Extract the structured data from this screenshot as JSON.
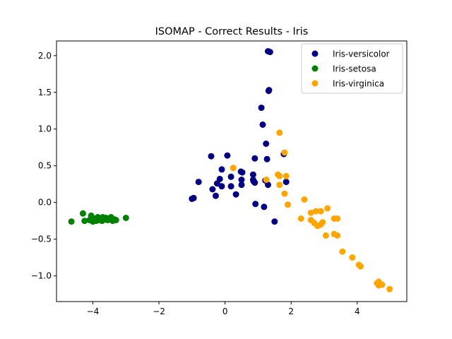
{
  "chart_data": {
    "type": "scatter",
    "title": "ISOMAP - Correct Results - Iris",
    "xlabel": "",
    "ylabel": "",
    "xlim": [
      -5.1,
      5.5
    ],
    "ylim": [
      -1.35,
      2.2
    ],
    "xticks": [
      -4,
      -2,
      0,
      2,
      4
    ],
    "yticks": [
      -1.0,
      -0.5,
      0.0,
      0.5,
      1.0,
      1.5,
      2.0
    ],
    "xtick_labels": [
      "−4",
      "−2",
      "0",
      "2",
      "4"
    ],
    "ytick_labels": [
      "−1.0",
      "−0.5",
      "0.0",
      "0.5",
      "1.0",
      "1.5",
      "2.0"
    ],
    "grid": false,
    "legend_position": "top-right",
    "series": [
      {
        "name": "Iris-versicolor",
        "color": "#000080",
        "points": [
          [
            1.3,
            2.06
          ],
          [
            1.36,
            2.05
          ],
          [
            1.33,
            1.53
          ],
          [
            1.32,
            1.52
          ],
          [
            1.1,
            1.29
          ],
          [
            1.14,
            1.06
          ],
          [
            1.24,
            0.8
          ],
          [
            1.78,
            0.66
          ],
          [
            -0.42,
            0.63
          ],
          [
            0.07,
            0.64
          ],
          [
            0.9,
            0.6
          ],
          [
            1.27,
            0.59
          ],
          [
            -0.1,
            0.45
          ],
          [
            0.48,
            0.42
          ],
          [
            0.52,
            0.41
          ],
          [
            0.85,
            0.38
          ],
          [
            0.18,
            0.35
          ],
          [
            -0.16,
            0.32
          ],
          [
            0.5,
            0.31
          ],
          [
            0.85,
            0.31
          ],
          [
            0.86,
            0.29
          ],
          [
            1.22,
            0.3
          ],
          [
            1.85,
            0.28
          ],
          [
            -0.8,
            0.28
          ],
          [
            -0.24,
            0.26
          ],
          [
            0.9,
            0.27
          ],
          [
            0.5,
            0.24
          ],
          [
            1.3,
            0.24
          ],
          [
            -0.1,
            0.22
          ],
          [
            0.18,
            0.22
          ],
          [
            -0.38,
            0.18
          ],
          [
            -0.28,
            0.09
          ],
          [
            0.33,
            0.11
          ],
          [
            -1.0,
            0.05
          ],
          [
            -0.95,
            0.06
          ],
          [
            0.92,
            -0.02
          ],
          [
            1.18,
            -0.06
          ],
          [
            1.5,
            -0.26
          ]
        ]
      },
      {
        "name": "Iris-setosa",
        "color": "#008000",
        "points": [
          [
            -4.65,
            -0.26
          ],
          [
            -4.3,
            -0.15
          ],
          [
            -4.25,
            -0.25
          ],
          [
            -4.1,
            -0.24
          ],
          [
            -4.05,
            -0.18
          ],
          [
            -4.0,
            -0.26
          ],
          [
            -3.95,
            -0.22
          ],
          [
            -3.9,
            -0.25
          ],
          [
            -3.85,
            -0.2
          ],
          [
            -3.8,
            -0.24
          ],
          [
            -3.75,
            -0.22
          ],
          [
            -3.72,
            -0.25
          ],
          [
            -3.7,
            -0.2
          ],
          [
            -3.65,
            -0.23
          ],
          [
            -3.6,
            -0.21
          ],
          [
            -3.55,
            -0.24
          ],
          [
            -3.5,
            -0.22
          ],
          [
            -3.45,
            -0.2
          ],
          [
            -3.4,
            -0.25
          ],
          [
            -3.35,
            -0.23
          ],
          [
            -3.3,
            -0.24
          ],
          [
            -3.0,
            -0.21
          ]
        ]
      },
      {
        "name": "Iris-virginica",
        "color": "#FFA500",
        "points": [
          [
            1.65,
            0.95
          ],
          [
            1.8,
            0.68
          ],
          [
            0.25,
            0.47
          ],
          [
            1.6,
            0.38
          ],
          [
            1.65,
            0.36
          ],
          [
            1.85,
            0.36
          ],
          [
            1.25,
            0.31
          ],
          [
            1.65,
            0.24
          ],
          [
            1.8,
            0.12
          ],
          [
            1.9,
            -0.03
          ],
          [
            2.4,
            0.04
          ],
          [
            2.3,
            -0.22
          ],
          [
            2.6,
            -0.14
          ],
          [
            2.75,
            -0.12
          ],
          [
            2.9,
            -0.12
          ],
          [
            3.1,
            -0.08
          ],
          [
            2.6,
            -0.24
          ],
          [
            2.7,
            -0.28
          ],
          [
            2.8,
            -0.32
          ],
          [
            2.9,
            -0.3
          ],
          [
            2.95,
            -0.27
          ],
          [
            3.3,
            -0.22
          ],
          [
            3.4,
            -0.22
          ],
          [
            3.05,
            -0.45
          ],
          [
            3.3,
            -0.43
          ],
          [
            3.4,
            -0.45
          ],
          [
            3.55,
            -0.67
          ],
          [
            3.85,
            -0.75
          ],
          [
            4.05,
            -0.85
          ],
          [
            4.1,
            -0.87
          ],
          [
            4.6,
            -1.1
          ],
          [
            4.65,
            -1.08
          ],
          [
            4.75,
            -1.12
          ],
          [
            4.65,
            -1.13
          ],
          [
            4.98,
            -1.18
          ]
        ]
      }
    ]
  }
}
